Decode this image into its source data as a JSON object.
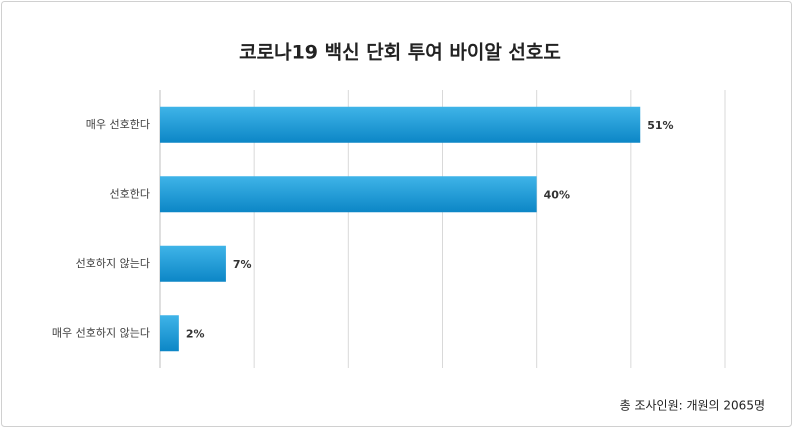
{
  "chart_data": {
    "type": "bar",
    "orientation": "horizontal",
    "title": "코로나19 백신 단회 투여 바이알 선호도",
    "categories": [
      "매우 선호한다",
      "선호한다",
      "선호하지 않는다",
      "매우 선호하지 않는다"
    ],
    "values": [
      51,
      40,
      7,
      2
    ],
    "value_labels": [
      "51%",
      "40%",
      "7%",
      "2%"
    ],
    "color": "#1a9bd7",
    "xlim": [
      0,
      60
    ],
    "xticks": [
      0,
      10,
      20,
      30,
      40,
      50,
      60
    ],
    "grid": true,
    "note": "총 조사인원: 개원의 2065명"
  }
}
